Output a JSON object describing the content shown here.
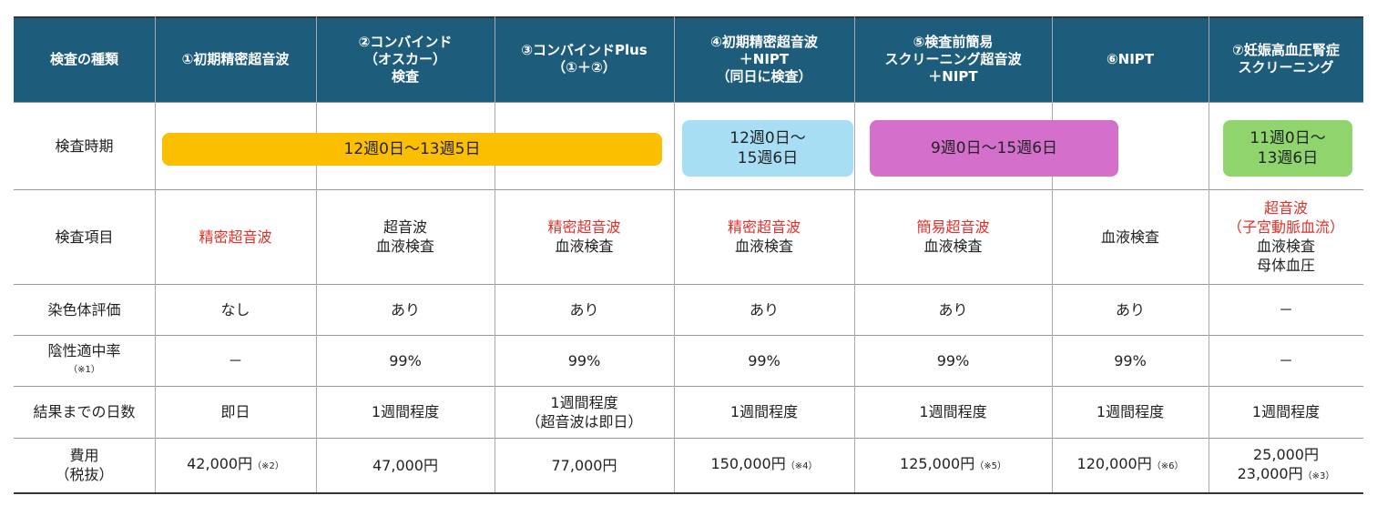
{
  "header": [
    "検査の種類",
    "①初期精密超音波",
    "②コンバインド\n（オスカー）\n検査",
    "③コンバインドPlus\n（①＋②）",
    "④初期精密超音波\n＋NIPT\n（同日に検査）",
    "⑤検査前簡易\nスクリーニング超音波\n＋NIPT",
    "⑥NIPT",
    "⑦妊娠高血圧腎症\nスクリーニング"
  ],
  "period": {
    "label": "検査時期",
    "bars": [
      {
        "text": "12週0日～13週5日",
        "color": "#fbbf00"
      },
      {
        "text": "12週0日～\n15週6日",
        "color": "#a8def4"
      },
      {
        "text": "9週0日～15週6日",
        "color": "#d470cc"
      },
      {
        "text": "11週0日～\n13週6日",
        "color": "#8fd46c"
      }
    ]
  },
  "items": {
    "label": "検査項目",
    "cells": [
      {
        "red": "精密超音波"
      },
      {
        "black": "超音波\n血液検査"
      },
      {
        "red": "精密超音波",
        "black": "血液検査"
      },
      {
        "red": "精密超音波",
        "black": "血液検査"
      },
      {
        "red": "簡易超音波",
        "black": "血液検査"
      },
      {
        "black": "血液検査"
      },
      {
        "red": "超音波\n（子宮動脈血流）",
        "black": "血液検査\n母体血圧"
      }
    ]
  },
  "rows": [
    {
      "label": "染色体評価",
      "cells": [
        "なし",
        "あり",
        "あり",
        "あり",
        "あり",
        "あり",
        "－"
      ]
    },
    {
      "label": "陰性適中率",
      "label_note": "（※1）",
      "cells": [
        "－",
        "99%",
        "99%",
        "99%",
        "99%",
        "99%",
        "－"
      ]
    },
    {
      "label": "結果までの日数",
      "cells": [
        "即日",
        "1週間程度",
        "1週間程度\n（超音波は即日）",
        "1週間程度",
        "1週間程度",
        "1週間程度",
        "1週間程度"
      ]
    }
  ],
  "cost": {
    "label": "費用\n（税抜）",
    "cells": [
      [
        {
          "text": "42,000円",
          "note": "（※2）"
        }
      ],
      [
        {
          "text": "47,000円"
        }
      ],
      [
        {
          "text": "77,000円"
        }
      ],
      [
        {
          "text": "150,000円",
          "note": "（※4）"
        }
      ],
      [
        {
          "text": "125,000円",
          "note": "（※5）"
        }
      ],
      [
        {
          "text": "120,000円",
          "note": "（※6）"
        }
      ],
      [
        {
          "text": "25,000円"
        },
        {
          "text": "23,000円",
          "note": "（※3）"
        }
      ]
    ]
  }
}
